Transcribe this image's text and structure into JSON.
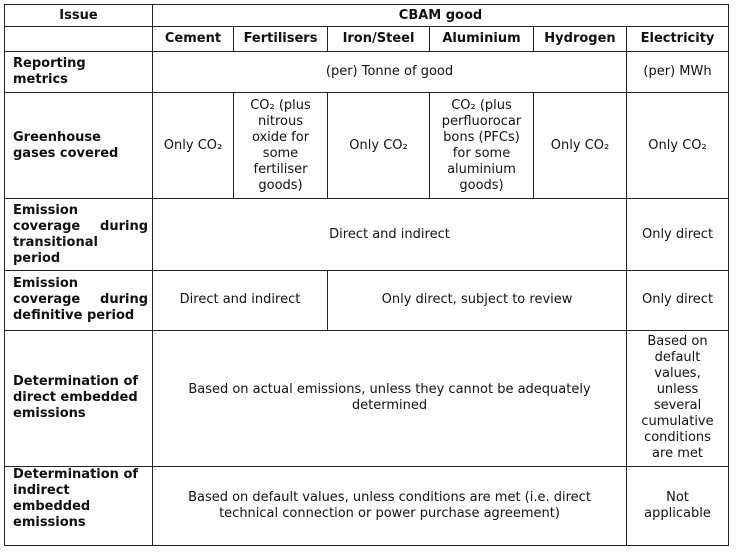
{
  "header": {
    "issue": "Issue",
    "cbam_good": "CBAM good",
    "goods": [
      "Cement",
      "Fertilisers",
      "Iron/Steel",
      "Aluminium",
      "Hydrogen",
      "Electricity"
    ]
  },
  "rows": {
    "reporting_metrics": {
      "issue_lines": [
        "Reporting",
        "metrics"
      ],
      "goods_value": "(per) Tonne of good",
      "electricity_value": "(per) MWh"
    },
    "ghg_covered": {
      "issue_lines": [
        "Greenhouse",
        "gases covered"
      ],
      "cement": "Only CO₂",
      "fertilisers_lines": [
        "CO₂ (plus",
        "nitrous",
        "oxide for",
        "some",
        "fertiliser",
        "goods)"
      ],
      "iron_steel": "Only CO₂",
      "aluminium_lines": [
        "CO₂ (plus",
        "perfluorocar",
        "bons (PFCs)",
        "for some",
        "aluminium",
        "goods)"
      ],
      "hydrogen": "Only CO₂",
      "electricity": "Only CO₂"
    },
    "coverage_transitional": {
      "issue_lines": [
        "Emission",
        "coverage during",
        "transitional",
        "period"
      ],
      "goods_value": "Direct and indirect",
      "electricity_value": "Only direct"
    },
    "coverage_definitive": {
      "issue_lines": [
        "Emission",
        "coverage during",
        "definitive period"
      ],
      "cement_fertilisers": "Direct and indirect",
      "others": "Only direct, subject to review",
      "electricity_value": "Only direct"
    },
    "direct_embedded": {
      "issue_lines": [
        "Determination of",
        "direct embedded",
        "emissions"
      ],
      "goods_lines": [
        "Based on actual emissions, unless they cannot be adequately",
        "determined"
      ],
      "electricity_lines": [
        "Based on",
        "default",
        "values,",
        "unless",
        "several",
        "cumulative",
        "conditions",
        "are met"
      ]
    },
    "indirect_embedded": {
      "issue_lines": [
        "Determination of",
        "indirect",
        "embedded",
        "emissions"
      ],
      "goods_lines": [
        "Based on default values, unless conditions are met (i.e. direct",
        "technical connection or power purchase agreement)"
      ],
      "electricity_lines": [
        "Not",
        "applicable"
      ]
    }
  }
}
